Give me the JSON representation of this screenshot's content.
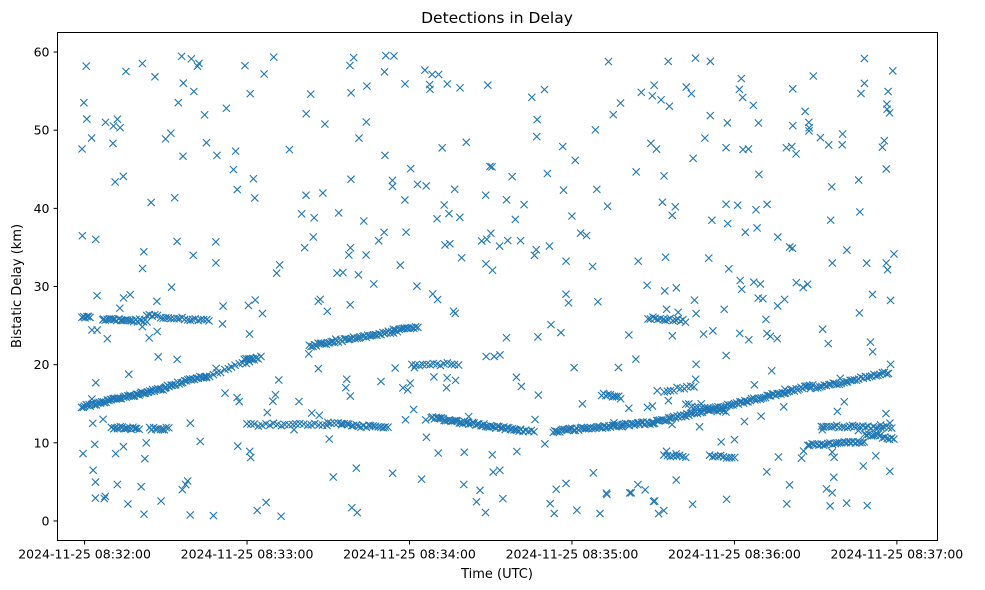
{
  "chart_data": {
    "type": "scatter",
    "title": "Detections in Delay",
    "xlabel": "Time (UTC)",
    "ylabel": "Bistatic Delay (km)",
    "marker": "x",
    "color": "#1f77b4",
    "grid": false,
    "x_unit": "time (UTC)",
    "xlim": [
      "2024-11-25 08:31:50",
      "2024-11-25 08:37:15"
    ],
    "ylim": [
      -2.5,
      62.5
    ],
    "x_ticks": [
      "2024-11-25 08:32:00",
      "2024-11-25 08:33:00",
      "2024-11-25 08:34:00",
      "2024-11-25 08:35:00",
      "2024-11-25 08:36:00",
      "2024-11-25 08:37:00"
    ],
    "y_ticks": [
      0,
      10,
      20,
      30,
      40,
      50,
      60
    ],
    "tracks": [
      {
        "from": "2024-11-25 08:31:59",
        "to": "2024-11-25 08:32:30",
        "delay_from": 14.6,
        "delay_to": 17.0,
        "count": 60
      },
      {
        "from": "2024-11-25 08:32:30",
        "to": "2024-11-25 08:32:45",
        "delay_from": 17.2,
        "delay_to": 18.6,
        "count": 25
      },
      {
        "from": "2024-11-25 08:31:59",
        "to": "2024-11-25 08:32:02",
        "delay_from": 26.1,
        "delay_to": 26.0,
        "count": 6
      },
      {
        "from": "2024-11-25 08:32:07",
        "to": "2024-11-25 08:32:23",
        "delay_from": 25.8,
        "delay_to": 25.6,
        "count": 24
      },
      {
        "from": "2024-11-25 08:32:23",
        "to": "2024-11-25 08:32:46",
        "delay_from": 26.3,
        "delay_to": 25.6,
        "count": 24
      },
      {
        "from": "2024-11-25 08:32:10",
        "to": "2024-11-25 08:32:20",
        "delay_from": 11.9,
        "delay_to": 11.9,
        "count": 16
      },
      {
        "from": "2024-11-25 08:32:24",
        "to": "2024-11-25 08:32:31",
        "delay_from": 11.8,
        "delay_to": 11.8,
        "count": 10
      },
      {
        "from": "2024-11-25 08:32:45",
        "to": "2024-11-25 08:33:05",
        "delay_from": 18.4,
        "delay_to": 21.0,
        "count": 16
      },
      {
        "from": "2024-11-25 08:32:59",
        "to": "2024-11-25 08:33:04",
        "delay_from": 20.8,
        "delay_to": 20.7,
        "count": 8
      },
      {
        "from": "2024-11-25 08:33:00",
        "to": "2024-11-25 08:33:35",
        "delay_from": 12.3,
        "delay_to": 12.4,
        "count": 26
      },
      {
        "from": "2024-11-25 08:33:23",
        "to": "2024-11-25 08:34:03",
        "delay_from": 22.4,
        "delay_to": 24.8,
        "count": 60
      },
      {
        "from": "2024-11-25 08:33:35",
        "to": "2024-11-25 08:33:52",
        "delay_from": 12.3,
        "delay_to": 12.0,
        "count": 20
      },
      {
        "from": "2024-11-25 08:34:01",
        "to": "2024-11-25 08:34:18",
        "delay_from": 20.0,
        "delay_to": 20.1,
        "count": 14
      },
      {
        "from": "2024-11-25 08:34:08",
        "to": "2024-11-25 08:34:41",
        "delay_from": 13.2,
        "delay_to": 11.6,
        "count": 55
      },
      {
        "from": "2024-11-25 08:34:41",
        "to": "2024-11-25 08:34:46",
        "delay_from": 11.6,
        "delay_to": 11.5,
        "count": 6
      },
      {
        "from": "2024-11-25 08:34:53",
        "to": "2024-11-25 08:35:30",
        "delay_from": 11.5,
        "delay_to": 12.6,
        "count": 60
      },
      {
        "from": "2024-11-25 08:35:30",
        "to": "2024-11-25 08:36:29",
        "delay_from": 12.6,
        "delay_to": 17.3,
        "count": 95
      },
      {
        "from": "2024-11-25 08:36:30",
        "to": "2024-11-25 08:36:57",
        "delay_from": 17.0,
        "delay_to": 19.0,
        "count": 35
      },
      {
        "from": "2024-11-25 08:35:11",
        "to": "2024-11-25 08:35:18",
        "delay_from": 16.2,
        "delay_to": 15.8,
        "count": 10
      },
      {
        "from": "2024-11-25 08:35:28",
        "to": "2024-11-25 08:35:42",
        "delay_from": 26.0,
        "delay_to": 25.6,
        "count": 16
      },
      {
        "from": "2024-11-25 08:35:34",
        "to": "2024-11-25 08:35:45",
        "delay_from": 16.6,
        "delay_to": 17.3,
        "count": 10
      },
      {
        "from": "2024-11-25 08:35:42",
        "to": "2024-11-25 08:35:57",
        "delay_from": 14.9,
        "delay_to": 13.9,
        "count": 14
      },
      {
        "from": "2024-11-25 08:35:34",
        "to": "2024-11-25 08:35:42",
        "delay_from": 8.4,
        "delay_to": 8.3,
        "count": 8
      },
      {
        "from": "2024-11-25 08:35:51",
        "to": "2024-11-25 08:36:00",
        "delay_from": 8.3,
        "delay_to": 8.2,
        "count": 10
      },
      {
        "from": "2024-11-25 08:36:27",
        "to": "2024-11-25 08:36:48",
        "delay_from": 9.7,
        "delay_to": 10.1,
        "count": 26
      },
      {
        "from": "2024-11-25 08:36:32",
        "to": "2024-11-25 08:36:58",
        "delay_from": 12.1,
        "delay_to": 12.0,
        "count": 28
      },
      {
        "from": "2024-11-25 08:36:48",
        "to": "2024-11-25 08:36:59",
        "delay_from": 11.2,
        "delay_to": 10.5,
        "count": 14
      }
    ],
    "scattered_detections": {
      "from": "2024-11-25 08:31:59",
      "to": "2024-11-25 08:37:00",
      "delay_min": 0.5,
      "delay_max": 59.8,
      "count": 470
    }
  }
}
